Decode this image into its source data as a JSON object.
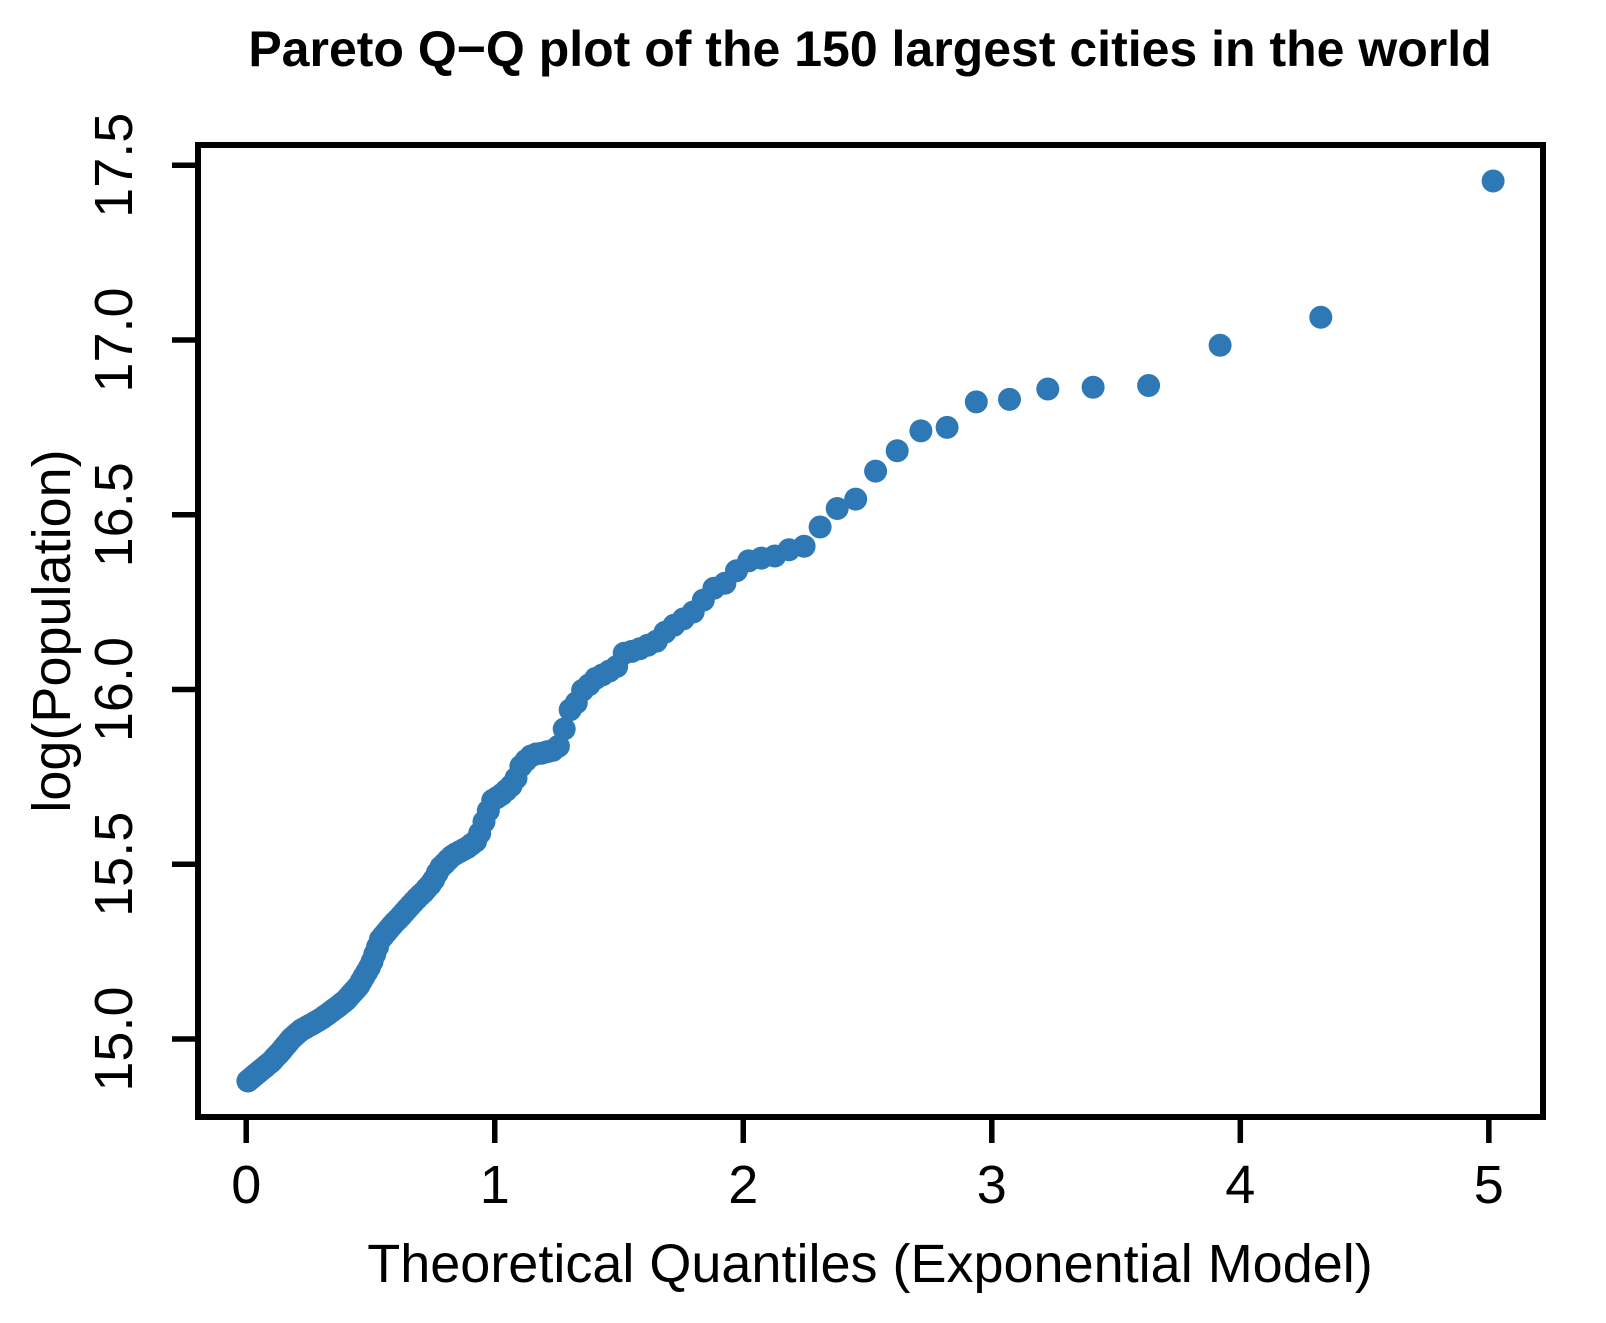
{
  "chart_data": {
    "type": "scatter",
    "title": "Pareto Q−Q plot of the 150 largest cities in the world",
    "xlabel": "Theoretical Quantiles (Exponential Model)",
    "ylabel": "log(Population)",
    "legend": null,
    "grid": false,
    "marker": {
      "shape": "circle",
      "color": "#2e79b5",
      "radius_px": 11.5
    },
    "axis_color": "#000000",
    "background_color": "#ffffff",
    "n_points": 150,
    "xlim": [
      -0.194,
      5.218
    ],
    "ylim": [
      14.777,
      17.558
    ],
    "x_ticks": [
      {
        "value": 0,
        "label": "0"
      },
      {
        "value": 1,
        "label": "1"
      },
      {
        "value": 2,
        "label": "2"
      },
      {
        "value": 3,
        "label": "3"
      },
      {
        "value": 4,
        "label": "4"
      },
      {
        "value": 5,
        "label": "5"
      }
    ],
    "y_ticks": [
      {
        "value": 15.0,
        "label": "15.0"
      },
      {
        "value": 15.5,
        "label": "15.5"
      },
      {
        "value": 16.0,
        "label": "16.0"
      },
      {
        "value": 16.5,
        "label": "16.5"
      },
      {
        "value": 17.0,
        "label": "17.0"
      },
      {
        "value": 17.5,
        "label": "17.5"
      }
    ],
    "points": [
      [
        0.0066,
        14.88
      ],
      [
        0.0133,
        14.884
      ],
      [
        0.0201,
        14.888
      ],
      [
        0.0268,
        14.892
      ],
      [
        0.0337,
        14.896
      ],
      [
        0.0405,
        14.9
      ],
      [
        0.0475,
        14.904
      ],
      [
        0.0544,
        14.908
      ],
      [
        0.0615,
        14.912
      ],
      [
        0.0685,
        14.916
      ],
      [
        0.0756,
        14.92
      ],
      [
        0.0828,
        14.925
      ],
      [
        0.09,
        14.929
      ],
      [
        0.0973,
        14.933
      ],
      [
        0.1046,
        14.938
      ],
      [
        0.112,
        14.944
      ],
      [
        0.1194,
        14.95
      ],
      [
        0.1269,
        14.955
      ],
      [
        0.1345,
        14.961
      ],
      [
        0.1421,
        14.967
      ],
      [
        0.1497,
        14.974
      ],
      [
        0.1575,
        14.981
      ],
      [
        0.1652,
        14.987
      ],
      [
        0.1731,
        14.994
      ],
      [
        0.181,
        15.001
      ],
      [
        0.189,
        15.006
      ],
      [
        0.197,
        15.011
      ],
      [
        0.2051,
        15.016
      ],
      [
        0.2133,
        15.021
      ],
      [
        0.2215,
        15.026
      ],
      [
        0.2298,
        15.029
      ],
      [
        0.2382,
        15.032
      ],
      [
        0.2466,
        15.036
      ],
      [
        0.2551,
        15.039
      ],
      [
        0.2637,
        15.042
      ],
      [
        0.2723,
        15.046
      ],
      [
        0.2811,
        15.05
      ],
      [
        0.2899,
        15.053
      ],
      [
        0.2988,
        15.057
      ],
      [
        0.3078,
        15.061
      ],
      [
        0.3168,
        15.066
      ],
      [
        0.3259,
        15.07
      ],
      [
        0.3352,
        15.075
      ],
      [
        0.3445,
        15.08
      ],
      [
        0.3538,
        15.085
      ],
      [
        0.3633,
        15.09
      ],
      [
        0.3729,
        15.095
      ],
      [
        0.3826,
        15.101
      ],
      [
        0.3923,
        15.106
      ],
      [
        0.4022,
        15.112
      ],
      [
        0.4121,
        15.12
      ],
      [
        0.4222,
        15.128
      ],
      [
        0.4323,
        15.136
      ],
      [
        0.4426,
        15.144
      ],
      [
        0.4529,
        15.153
      ],
      [
        0.4634,
        15.166
      ],
      [
        0.474,
        15.179
      ],
      [
        0.4847,
        15.192
      ],
      [
        0.4955,
        15.205
      ],
      [
        0.5064,
        15.222
      ],
      [
        0.5175,
        15.243
      ],
      [
        0.5286,
        15.264
      ],
      [
        0.5399,
        15.285
      ],
      [
        0.5514,
        15.295
      ],
      [
        0.5629,
        15.305
      ],
      [
        0.5746,
        15.315
      ],
      [
        0.5865,
        15.325
      ],
      [
        0.5984,
        15.334
      ],
      [
        0.6106,
        15.343
      ],
      [
        0.6228,
        15.352
      ],
      [
        0.6353,
        15.362
      ],
      [
        0.6478,
        15.372
      ],
      [
        0.6606,
        15.382
      ],
      [
        0.6735,
        15.392
      ],
      [
        0.6865,
        15.402
      ],
      [
        0.6998,
        15.411
      ],
      [
        0.7132,
        15.42
      ],
      [
        0.7268,
        15.431
      ],
      [
        0.7406,
        15.442
      ],
      [
        0.7546,
        15.456
      ],
      [
        0.7688,
        15.475
      ],
      [
        0.7832,
        15.492
      ],
      [
        0.7978,
        15.502
      ],
      [
        0.8126,
        15.513
      ],
      [
        0.8276,
        15.523
      ],
      [
        0.8429,
        15.53
      ],
      [
        0.8584,
        15.536
      ],
      [
        0.8742,
        15.542
      ],
      [
        0.8902,
        15.548
      ],
      [
        0.9064,
        15.557
      ],
      [
        0.9229,
        15.566
      ],
      [
        0.9397,
        15.589
      ],
      [
        0.9568,
        15.622
      ],
      [
        0.9742,
        15.653
      ],
      [
        0.9919,
        15.683
      ],
      [
        1.01,
        15.691
      ],
      [
        1.0283,
        15.7
      ],
      [
        1.047,
        15.712
      ],
      [
        1.066,
        15.725
      ],
      [
        1.0855,
        15.746
      ],
      [
        1.1053,
        15.781
      ],
      [
        1.1255,
        15.797
      ],
      [
        1.1461,
        15.81
      ],
      [
        1.1671,
        15.816
      ],
      [
        1.1886,
        15.818
      ],
      [
        1.2106,
        15.822
      ],
      [
        1.2331,
        15.826
      ],
      [
        1.2561,
        15.838
      ],
      [
        1.2796,
        15.887
      ],
      [
        1.3037,
        15.942
      ],
      [
        1.3284,
        15.962
      ],
      [
        1.3537,
        15.998
      ],
      [
        1.3797,
        16.014
      ],
      [
        1.4064,
        16.032
      ],
      [
        1.4338,
        16.042
      ],
      [
        1.4619,
        16.053
      ],
      [
        1.4909,
        16.066
      ],
      [
        1.5208,
        16.104
      ],
      [
        1.5515,
        16.109
      ],
      [
        1.5833,
        16.117
      ],
      [
        1.6161,
        16.127
      ],
      [
        1.65,
        16.138
      ],
      [
        1.6851,
        16.164
      ],
      [
        1.7214,
        16.184
      ],
      [
        1.7592,
        16.202
      ],
      [
        1.7984,
        16.222
      ],
      [
        1.8392,
        16.256
      ],
      [
        1.8818,
        16.29
      ],
      [
        1.9262,
        16.304
      ],
      [
        1.9728,
        16.34
      ],
      [
        2.0215,
        16.368
      ],
      [
        2.0728,
        16.376
      ],
      [
        2.1269,
        16.382
      ],
      [
        2.1841,
        16.4
      ],
      [
        2.2447,
        16.41
      ],
      [
        2.3092,
        16.465
      ],
      [
        2.3782,
        16.518
      ],
      [
        2.4523,
        16.545
      ],
      [
        2.5324,
        16.625
      ],
      [
        2.6194,
        16.683
      ],
      [
        2.7147,
        16.74
      ],
      [
        2.8201,
        16.75
      ],
      [
        2.9378,
        16.823
      ],
      [
        3.0714,
        16.83
      ],
      [
        3.2255,
        16.86
      ],
      [
        3.4078,
        16.865
      ],
      [
        3.631,
        16.87
      ],
      [
        3.9187,
        16.985
      ],
      [
        4.3241,
        17.065
      ],
      [
        5.0173,
        17.455
      ]
    ]
  }
}
